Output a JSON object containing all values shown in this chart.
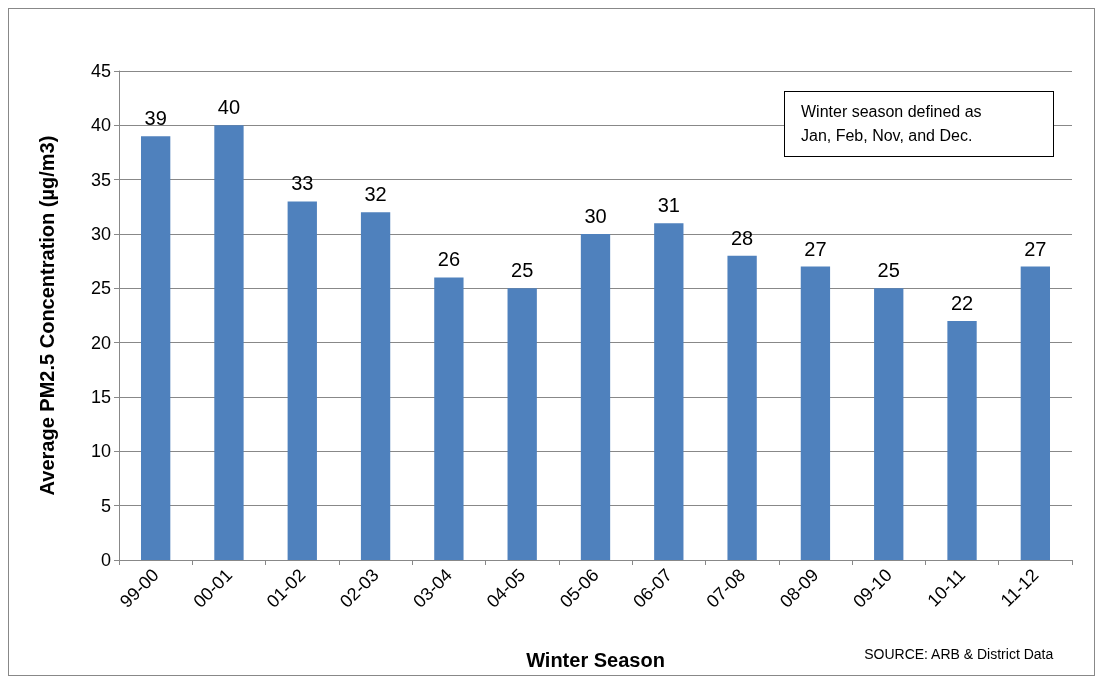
{
  "chart_data": {
    "type": "bar",
    "xlabel": "Winter Season",
    "ylabel": "Average PM2.5 Concentration (µg/m3)",
    "categories": [
      "99-00",
      "00-01",
      "01-02",
      "02-03",
      "03-04",
      "04-05",
      "05-06",
      "06-07",
      "07-08",
      "08-09",
      "09-10",
      "10-11",
      "11-12"
    ],
    "values": [
      39,
      40,
      33,
      32,
      26,
      25,
      30,
      31,
      28,
      27,
      25,
      22,
      27
    ],
    "color": "#4f81bd",
    "ylim": [
      0,
      45
    ],
    "yticks": [
      0,
      5,
      10,
      15,
      20,
      25,
      30,
      35,
      40,
      45
    ],
    "grid": "y",
    "data_labels": true,
    "annotations": [
      "Winter season defined as\nJan, Feb, Nov, and Dec.",
      "SOURCE: ARB & District Data"
    ]
  }
}
